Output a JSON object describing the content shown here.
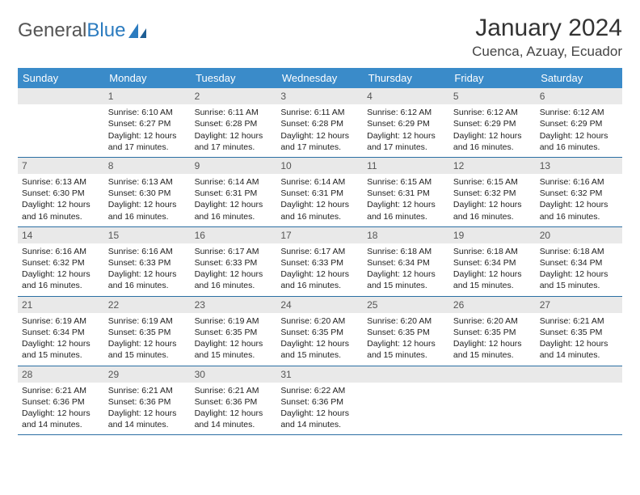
{
  "logo": {
    "text1": "General",
    "text2": "Blue"
  },
  "title": "January 2024",
  "location": "Cuenca, Azuay, Ecuador",
  "colors": {
    "header_bg": "#3a8bc9",
    "header_text": "#ffffff",
    "daynum_bg": "#e9e9e9",
    "row_border": "#2b6fa3",
    "logo_gray": "#555555",
    "logo_blue": "#2b7bbf"
  },
  "dayNames": [
    "Sunday",
    "Monday",
    "Tuesday",
    "Wednesday",
    "Thursday",
    "Friday",
    "Saturday"
  ],
  "weeks": [
    [
      {
        "n": "",
        "lines": []
      },
      {
        "n": "1",
        "lines": [
          "Sunrise: 6:10 AM",
          "Sunset: 6:27 PM",
          "Daylight: 12 hours and 17 minutes."
        ]
      },
      {
        "n": "2",
        "lines": [
          "Sunrise: 6:11 AM",
          "Sunset: 6:28 PM",
          "Daylight: 12 hours and 17 minutes."
        ]
      },
      {
        "n": "3",
        "lines": [
          "Sunrise: 6:11 AM",
          "Sunset: 6:28 PM",
          "Daylight: 12 hours and 17 minutes."
        ]
      },
      {
        "n": "4",
        "lines": [
          "Sunrise: 6:12 AM",
          "Sunset: 6:29 PM",
          "Daylight: 12 hours and 17 minutes."
        ]
      },
      {
        "n": "5",
        "lines": [
          "Sunrise: 6:12 AM",
          "Sunset: 6:29 PM",
          "Daylight: 12 hours and 16 minutes."
        ]
      },
      {
        "n": "6",
        "lines": [
          "Sunrise: 6:12 AM",
          "Sunset: 6:29 PM",
          "Daylight: 12 hours and 16 minutes."
        ]
      }
    ],
    [
      {
        "n": "7",
        "lines": [
          "Sunrise: 6:13 AM",
          "Sunset: 6:30 PM",
          "Daylight: 12 hours and 16 minutes."
        ]
      },
      {
        "n": "8",
        "lines": [
          "Sunrise: 6:13 AM",
          "Sunset: 6:30 PM",
          "Daylight: 12 hours and 16 minutes."
        ]
      },
      {
        "n": "9",
        "lines": [
          "Sunrise: 6:14 AM",
          "Sunset: 6:31 PM",
          "Daylight: 12 hours and 16 minutes."
        ]
      },
      {
        "n": "10",
        "lines": [
          "Sunrise: 6:14 AM",
          "Sunset: 6:31 PM",
          "Daylight: 12 hours and 16 minutes."
        ]
      },
      {
        "n": "11",
        "lines": [
          "Sunrise: 6:15 AM",
          "Sunset: 6:31 PM",
          "Daylight: 12 hours and 16 minutes."
        ]
      },
      {
        "n": "12",
        "lines": [
          "Sunrise: 6:15 AM",
          "Sunset: 6:32 PM",
          "Daylight: 12 hours and 16 minutes."
        ]
      },
      {
        "n": "13",
        "lines": [
          "Sunrise: 6:16 AM",
          "Sunset: 6:32 PM",
          "Daylight: 12 hours and 16 minutes."
        ]
      }
    ],
    [
      {
        "n": "14",
        "lines": [
          "Sunrise: 6:16 AM",
          "Sunset: 6:32 PM",
          "Daylight: 12 hours and 16 minutes."
        ]
      },
      {
        "n": "15",
        "lines": [
          "Sunrise: 6:16 AM",
          "Sunset: 6:33 PM",
          "Daylight: 12 hours and 16 minutes."
        ]
      },
      {
        "n": "16",
        "lines": [
          "Sunrise: 6:17 AM",
          "Sunset: 6:33 PM",
          "Daylight: 12 hours and 16 minutes."
        ]
      },
      {
        "n": "17",
        "lines": [
          "Sunrise: 6:17 AM",
          "Sunset: 6:33 PM",
          "Daylight: 12 hours and 16 minutes."
        ]
      },
      {
        "n": "18",
        "lines": [
          "Sunrise: 6:18 AM",
          "Sunset: 6:34 PM",
          "Daylight: 12 hours and 15 minutes."
        ]
      },
      {
        "n": "19",
        "lines": [
          "Sunrise: 6:18 AM",
          "Sunset: 6:34 PM",
          "Daylight: 12 hours and 15 minutes."
        ]
      },
      {
        "n": "20",
        "lines": [
          "Sunrise: 6:18 AM",
          "Sunset: 6:34 PM",
          "Daylight: 12 hours and 15 minutes."
        ]
      }
    ],
    [
      {
        "n": "21",
        "lines": [
          "Sunrise: 6:19 AM",
          "Sunset: 6:34 PM",
          "Daylight: 12 hours and 15 minutes."
        ]
      },
      {
        "n": "22",
        "lines": [
          "Sunrise: 6:19 AM",
          "Sunset: 6:35 PM",
          "Daylight: 12 hours and 15 minutes."
        ]
      },
      {
        "n": "23",
        "lines": [
          "Sunrise: 6:19 AM",
          "Sunset: 6:35 PM",
          "Daylight: 12 hours and 15 minutes."
        ]
      },
      {
        "n": "24",
        "lines": [
          "Sunrise: 6:20 AM",
          "Sunset: 6:35 PM",
          "Daylight: 12 hours and 15 minutes."
        ]
      },
      {
        "n": "25",
        "lines": [
          "Sunrise: 6:20 AM",
          "Sunset: 6:35 PM",
          "Daylight: 12 hours and 15 minutes."
        ]
      },
      {
        "n": "26",
        "lines": [
          "Sunrise: 6:20 AM",
          "Sunset: 6:35 PM",
          "Daylight: 12 hours and 15 minutes."
        ]
      },
      {
        "n": "27",
        "lines": [
          "Sunrise: 6:21 AM",
          "Sunset: 6:35 PM",
          "Daylight: 12 hours and 14 minutes."
        ]
      }
    ],
    [
      {
        "n": "28",
        "lines": [
          "Sunrise: 6:21 AM",
          "Sunset: 6:36 PM",
          "Daylight: 12 hours and 14 minutes."
        ]
      },
      {
        "n": "29",
        "lines": [
          "Sunrise: 6:21 AM",
          "Sunset: 6:36 PM",
          "Daylight: 12 hours and 14 minutes."
        ]
      },
      {
        "n": "30",
        "lines": [
          "Sunrise: 6:21 AM",
          "Sunset: 6:36 PM",
          "Daylight: 12 hours and 14 minutes."
        ]
      },
      {
        "n": "31",
        "lines": [
          "Sunrise: 6:22 AM",
          "Sunset: 6:36 PM",
          "Daylight: 12 hours and 14 minutes."
        ]
      },
      {
        "n": "",
        "lines": []
      },
      {
        "n": "",
        "lines": []
      },
      {
        "n": "",
        "lines": []
      }
    ]
  ]
}
